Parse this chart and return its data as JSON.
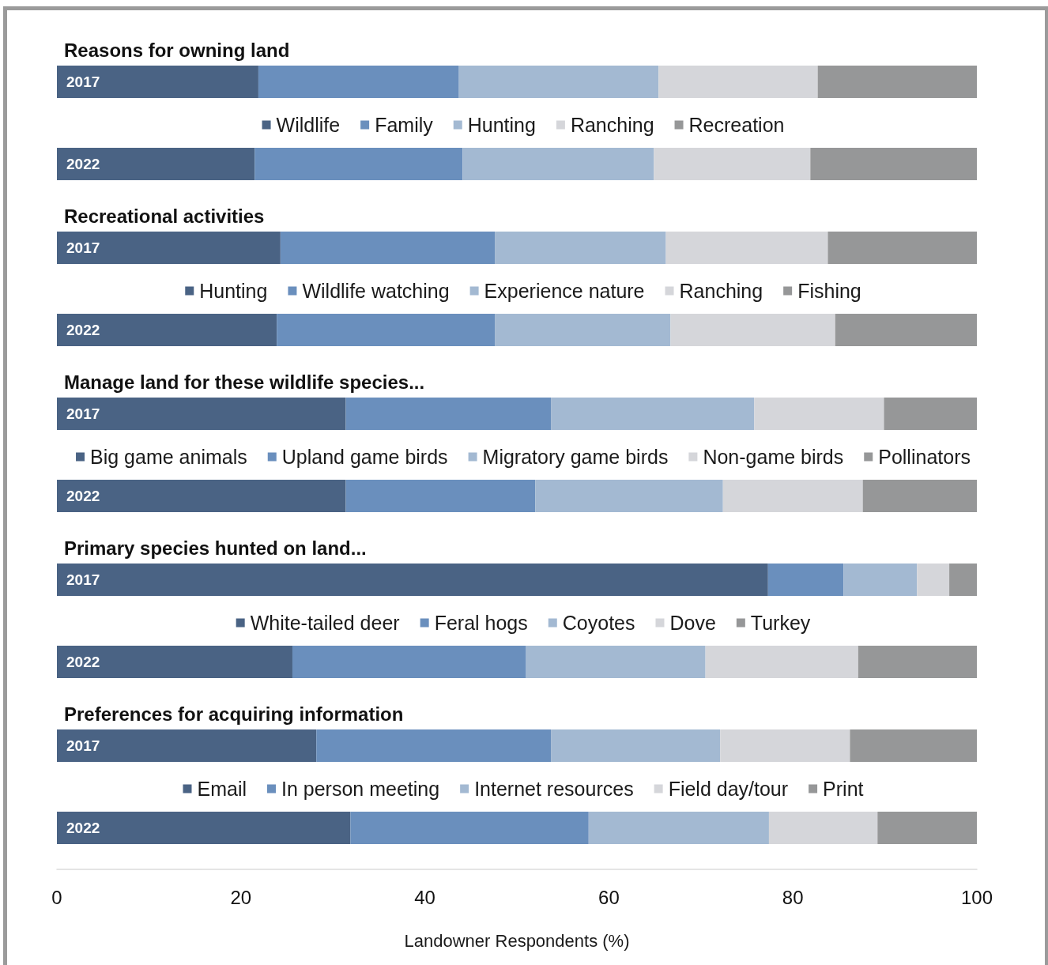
{
  "chart_data": [
    {
      "type": "bar",
      "title": "Reasons for owning land",
      "categories": [
        "2017",
        "2022"
      ],
      "series": [
        {
          "name": "Wildlife",
          "color": "#4a6384",
          "values": [
            21.9,
            21.5
          ]
        },
        {
          "name": "Family",
          "color": "#6a8fbd",
          "values": [
            21.8,
            22.6
          ]
        },
        {
          "name": "Hunting",
          "color": "#a3b9d2",
          "values": [
            21.7,
            20.8
          ]
        },
        {
          "name": "Ranching",
          "color": "#d5d6da",
          "values": [
            17.3,
            17.0
          ]
        },
        {
          "name": "Recreation",
          "color": "#969798",
          "values": [
            17.3,
            18.1
          ]
        }
      ],
      "stacked": true,
      "orientation": "horizontal",
      "xlim": [
        0,
        100
      ],
      "legend": "center",
      "tick_labels": "y"
    },
    {
      "type": "bar",
      "title": "Recreational activities",
      "categories": [
        "2017",
        "2022"
      ],
      "series": [
        {
          "name": "Hunting",
          "color": "#4a6384",
          "values": [
            24.3,
            23.9
          ]
        },
        {
          "name": "Wildlife watching",
          "color": "#6a8fbd",
          "values": [
            23.3,
            23.7
          ]
        },
        {
          "name": "Experience nature",
          "color": "#a3b9d2",
          "values": [
            18.6,
            19.1
          ]
        },
        {
          "name": "Ranching",
          "color": "#d5d6da",
          "values": [
            17.6,
            17.9
          ]
        },
        {
          "name": "Fishing",
          "color": "#969798",
          "values": [
            16.2,
            15.4
          ]
        }
      ],
      "stacked": true,
      "orientation": "horizontal",
      "xlim": [
        0,
        100
      ],
      "legend": "center",
      "tick_labels": "y"
    },
    {
      "type": "bar",
      "title": "Manage land for these wildlife species...",
      "categories": [
        "2017",
        "2022"
      ],
      "series": [
        {
          "name": "Big game animals",
          "color": "#4a6384",
          "values": [
            31.4,
            31.4
          ]
        },
        {
          "name": "Upland game birds",
          "color": "#6a8fbd",
          "values": [
            22.3,
            20.6
          ]
        },
        {
          "name": "Migratory game birds",
          "color": "#a3b9d2",
          "values": [
            22.1,
            20.4
          ]
        },
        {
          "name": "Non-game birds",
          "color": "#d5d6da",
          "values": [
            14.1,
            15.2
          ]
        },
        {
          "name": "Pollinators",
          "color": "#969798",
          "values": [
            10.1,
            12.4
          ]
        }
      ],
      "stacked": true,
      "orientation": "horizontal",
      "xlim": [
        0,
        100
      ],
      "legend": "center",
      "tick_labels": "y"
    },
    {
      "type": "bar",
      "title": "Primary species hunted on land...",
      "categories": [
        "2017",
        "2022"
      ],
      "series": [
        {
          "name": "White-tailed deer",
          "color": "#4a6384",
          "values": [
            77.3,
            25.6
          ]
        },
        {
          "name": "Feral hogs",
          "color": "#6a8fbd",
          "values": [
            8.2,
            25.4
          ]
        },
        {
          "name": "Coyotes",
          "color": "#a3b9d2",
          "values": [
            8.0,
            19.5
          ]
        },
        {
          "name": "Dove",
          "color": "#d5d6da",
          "values": [
            3.5,
            16.6
          ]
        },
        {
          "name": "Turkey",
          "color": "#969798",
          "values": [
            3.0,
            12.9
          ]
        }
      ],
      "stacked": true,
      "orientation": "horizontal",
      "xlim": [
        0,
        100
      ],
      "legend": "center",
      "tick_labels": "y"
    },
    {
      "type": "bar",
      "title": "Preferences for acquiring information",
      "categories": [
        "2017",
        "2022"
      ],
      "series": [
        {
          "name": "Email",
          "color": "#4a6384",
          "values": [
            28.2,
            31.9
          ]
        },
        {
          "name": "In person meeting",
          "color": "#6a8fbd",
          "values": [
            25.5,
            25.9
          ]
        },
        {
          "name": "Internet resources",
          "color": "#a3b9d2",
          "values": [
            18.4,
            19.6
          ]
        },
        {
          "name": "Field day/tour",
          "color": "#d5d6da",
          "values": [
            14.1,
            11.8
          ]
        },
        {
          "name": "Print",
          "color": "#969798",
          "values": [
            13.8,
            10.8
          ]
        }
      ],
      "stacked": true,
      "orientation": "horizontal",
      "xlim": [
        0,
        100
      ],
      "xticks": [
        0,
        20,
        40,
        60,
        80,
        100
      ],
      "xlabel": "Landowner Respondents (%)",
      "legend": "center"
    }
  ]
}
